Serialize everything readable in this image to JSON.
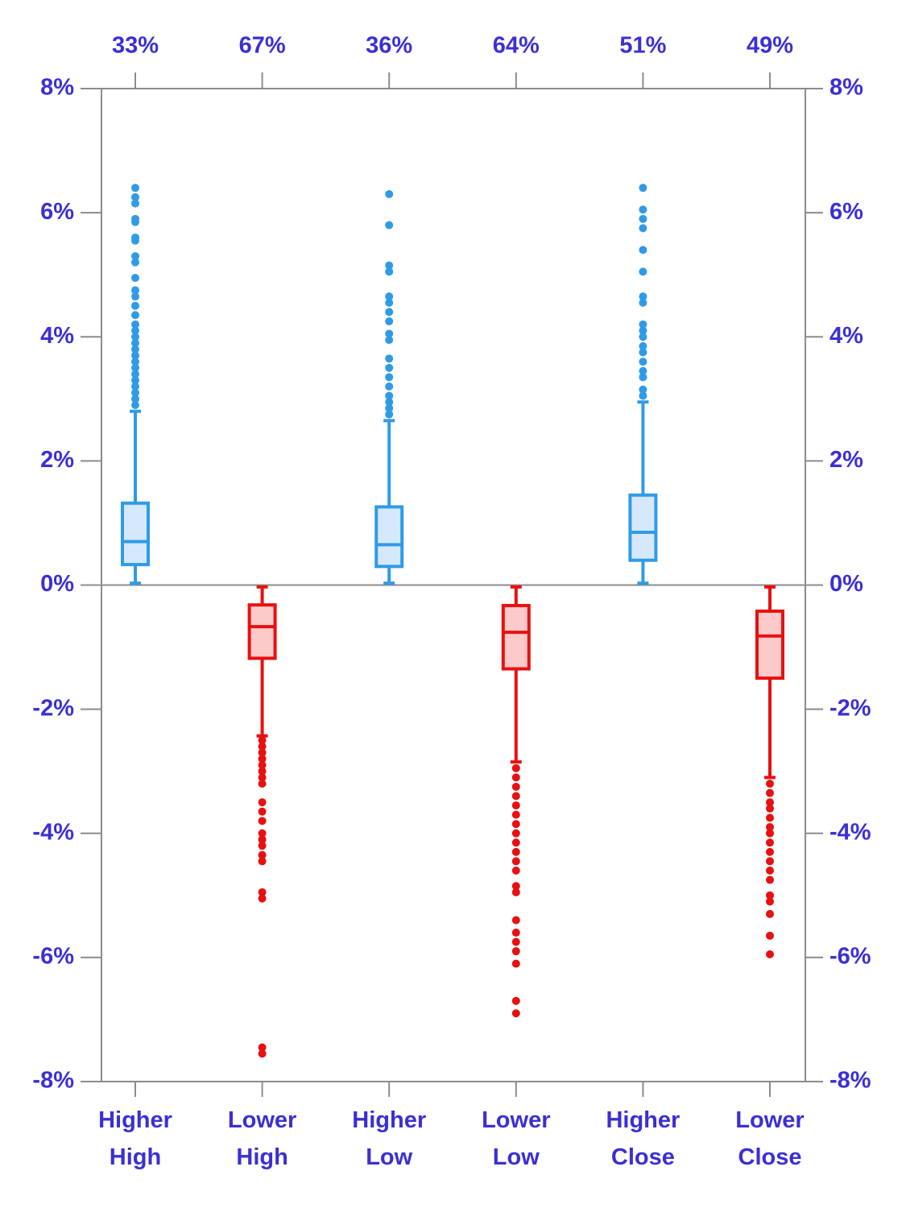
{
  "chart_data": {
    "type": "box",
    "categories": [
      "Higher High",
      "Lower High",
      "Higher Low",
      "Lower Low",
      "Higher Close",
      "Lower Close"
    ],
    "top_labels": [
      "33%",
      "67%",
      "36%",
      "64%",
      "51%",
      "49%"
    ],
    "boxes": [
      {
        "color": "#2f9be8",
        "fill": "#d6e8fb",
        "whislo": 0.03,
        "q1": 0.33,
        "median": 0.7,
        "q3": 1.32,
        "whishi": 2.8,
        "fliers": [
          2.9,
          3.0,
          3.1,
          3.2,
          3.3,
          3.4,
          3.5,
          3.6,
          3.7,
          3.8,
          3.9,
          4.0,
          4.1,
          4.2,
          4.35,
          4.5,
          4.65,
          4.75,
          4.95,
          5.2,
          5.3,
          5.55,
          5.6,
          5.85,
          5.9,
          6.15,
          6.25,
          6.4
        ]
      },
      {
        "color": "#e81010",
        "fill": "#fdcaca",
        "whislo": -2.43,
        "q1": -1.18,
        "median": -0.67,
        "q3": -0.32,
        "whishi": -0.03,
        "fliers": [
          -2.5,
          -2.6,
          -2.7,
          -2.8,
          -2.9,
          -3.0,
          -3.1,
          -3.2,
          -3.5,
          -3.65,
          -3.8,
          -4.0,
          -4.1,
          -4.2,
          -4.35,
          -4.45,
          -4.95,
          -5.05,
          -7.45,
          -7.55
        ]
      },
      {
        "color": "#2f9be8",
        "fill": "#d6e8fb",
        "whislo": 0.03,
        "q1": 0.3,
        "median": 0.65,
        "q3": 1.26,
        "whishi": 2.65,
        "fliers": [
          2.75,
          2.85,
          2.95,
          3.05,
          3.2,
          3.35,
          3.5,
          3.65,
          3.95,
          4.05,
          4.25,
          4.4,
          4.55,
          4.65,
          5.05,
          5.15,
          5.8,
          6.3
        ]
      },
      {
        "color": "#e81010",
        "fill": "#fdcaca",
        "whislo": -2.85,
        "q1": -1.35,
        "median": -0.76,
        "q3": -0.33,
        "whishi": -0.03,
        "fliers": [
          -2.95,
          -3.1,
          -3.25,
          -3.4,
          -3.55,
          -3.7,
          -3.85,
          -4.0,
          -4.15,
          -4.3,
          -4.45,
          -4.6,
          -4.85,
          -4.95,
          -5.4,
          -5.6,
          -5.75,
          -5.9,
          -6.1,
          -6.7,
          -6.9
        ]
      },
      {
        "color": "#2f9be8",
        "fill": "#d6e8fb",
        "whislo": 0.03,
        "q1": 0.4,
        "median": 0.85,
        "q3": 1.45,
        "whishi": 2.95,
        "fliers": [
          3.05,
          3.15,
          3.35,
          3.45,
          3.6,
          3.75,
          3.85,
          4.0,
          4.1,
          4.2,
          4.55,
          4.65,
          5.05,
          5.4,
          5.75,
          5.9,
          6.05,
          6.4
        ]
      },
      {
        "color": "#e81010",
        "fill": "#fdcaca",
        "whislo": -3.1,
        "q1": -1.5,
        "median": -0.82,
        "q3": -0.42,
        "whishi": -0.03,
        "fliers": [
          -3.2,
          -3.35,
          -3.5,
          -3.6,
          -3.75,
          -3.9,
          -4.0,
          -4.15,
          -4.3,
          -4.45,
          -4.6,
          -4.75,
          -5.0,
          -5.1,
          -5.3,
          -5.65,
          -5.95
        ]
      }
    ],
    "ylim": [
      -8,
      8
    ],
    "yticks": [
      {
        "value": -8,
        "label": "-8%"
      },
      {
        "value": -6,
        "label": "-6%"
      },
      {
        "value": -4,
        "label": "-4%"
      },
      {
        "value": -2,
        "label": "-2%"
      },
      {
        "value": 0,
        "label": "0%"
      },
      {
        "value": 2,
        "label": "2%"
      },
      {
        "value": 4,
        "label": "4%"
      },
      {
        "value": 6,
        "label": "6%"
      },
      {
        "value": 8,
        "label": "8%"
      }
    ],
    "axis_color": "#8c8c8c",
    "text_color": "#3b2fd4"
  }
}
